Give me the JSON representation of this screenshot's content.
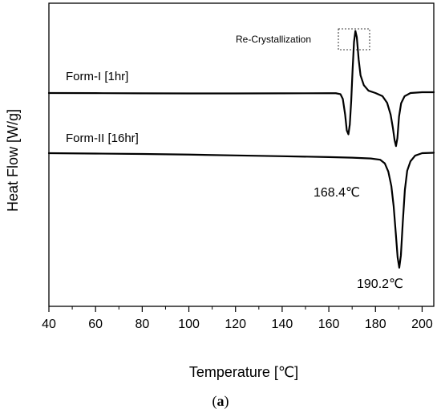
{
  "chart_data": {
    "type": "line",
    "title": "",
    "xlabel": "Temperature [℃]",
    "ylabel": "Heat Flow [W/g]",
    "xlim": [
      40,
      205
    ],
    "x_ticks": [
      40,
      60,
      80,
      100,
      120,
      140,
      160,
      180,
      200
    ],
    "y_ticks_shown": false,
    "grid": false,
    "series": [
      {
        "name": "Form-I [1hr]",
        "color": "#000000",
        "points": [
          [
            40,
            0.0
          ],
          [
            60,
            -0.03
          ],
          [
            80,
            -0.07
          ],
          [
            100,
            -0.1
          ],
          [
            120,
            -0.1
          ],
          [
            140,
            -0.08
          ],
          [
            160,
            -0.05
          ],
          [
            163,
            -0.05
          ],
          [
            165,
            -0.3
          ],
          [
            166,
            -1.5
          ],
          [
            167,
            -5.5
          ],
          [
            167.7,
            -9.5
          ],
          [
            168.4,
            -10.5
          ],
          [
            169.0,
            -8.0
          ],
          [
            169.6,
            -2.0
          ],
          [
            170.2,
            6.0
          ],
          [
            170.8,
            13.0
          ],
          [
            171.4,
            15.8
          ],
          [
            172.0,
            14.2
          ],
          [
            172.8,
            8.5
          ],
          [
            173.6,
            4.5
          ],
          [
            175,
            2.0
          ],
          [
            177,
            0.6
          ],
          [
            180,
            0.0
          ],
          [
            183,
            -0.8
          ],
          [
            185,
            -2.5
          ],
          [
            186.5,
            -5.5
          ],
          [
            187.5,
            -9.0
          ],
          [
            188.2,
            -12.0
          ],
          [
            188.8,
            -13.5
          ],
          [
            189.4,
            -11.5
          ],
          [
            190.1,
            -6.0
          ],
          [
            191,
            -2.6
          ],
          [
            192.5,
            -0.8
          ],
          [
            195,
            0.0
          ],
          [
            200,
            0.2
          ],
          [
            205,
            0.2
          ]
        ]
      },
      {
        "name": "Form-II [16hr]",
        "color": "#000000",
        "points": [
          [
            40,
            0.0
          ],
          [
            60,
            -0.1
          ],
          [
            80,
            -0.2
          ],
          [
            100,
            -0.35
          ],
          [
            120,
            -0.55
          ],
          [
            140,
            -0.75
          ],
          [
            160,
            -0.95
          ],
          [
            170,
            -1.1
          ],
          [
            178,
            -1.3
          ],
          [
            182,
            -1.6
          ],
          [
            184,
            -2.5
          ],
          [
            185.5,
            -4.5
          ],
          [
            186.8,
            -8.0
          ],
          [
            187.8,
            -13.0
          ],
          [
            188.7,
            -19.5
          ],
          [
            189.5,
            -25.5
          ],
          [
            190.2,
            -28.0
          ],
          [
            190.9,
            -25.0
          ],
          [
            191.7,
            -17.0
          ],
          [
            192.6,
            -9.0
          ],
          [
            193.6,
            -4.3
          ],
          [
            195,
            -2.0
          ],
          [
            197,
            -0.6
          ],
          [
            200,
            0.0
          ],
          [
            205,
            0.1
          ]
        ]
      }
    ],
    "annotations": [
      {
        "text": "168.4℃",
        "x": 168.4
      },
      {
        "text": "190.2℃",
        "x": 190.2
      },
      {
        "text": "Re-Crystallization",
        "x": 171.4,
        "boxed_region": true
      }
    ]
  },
  "caption": {
    "open": "(",
    "letter": "a",
    "close": ")"
  }
}
